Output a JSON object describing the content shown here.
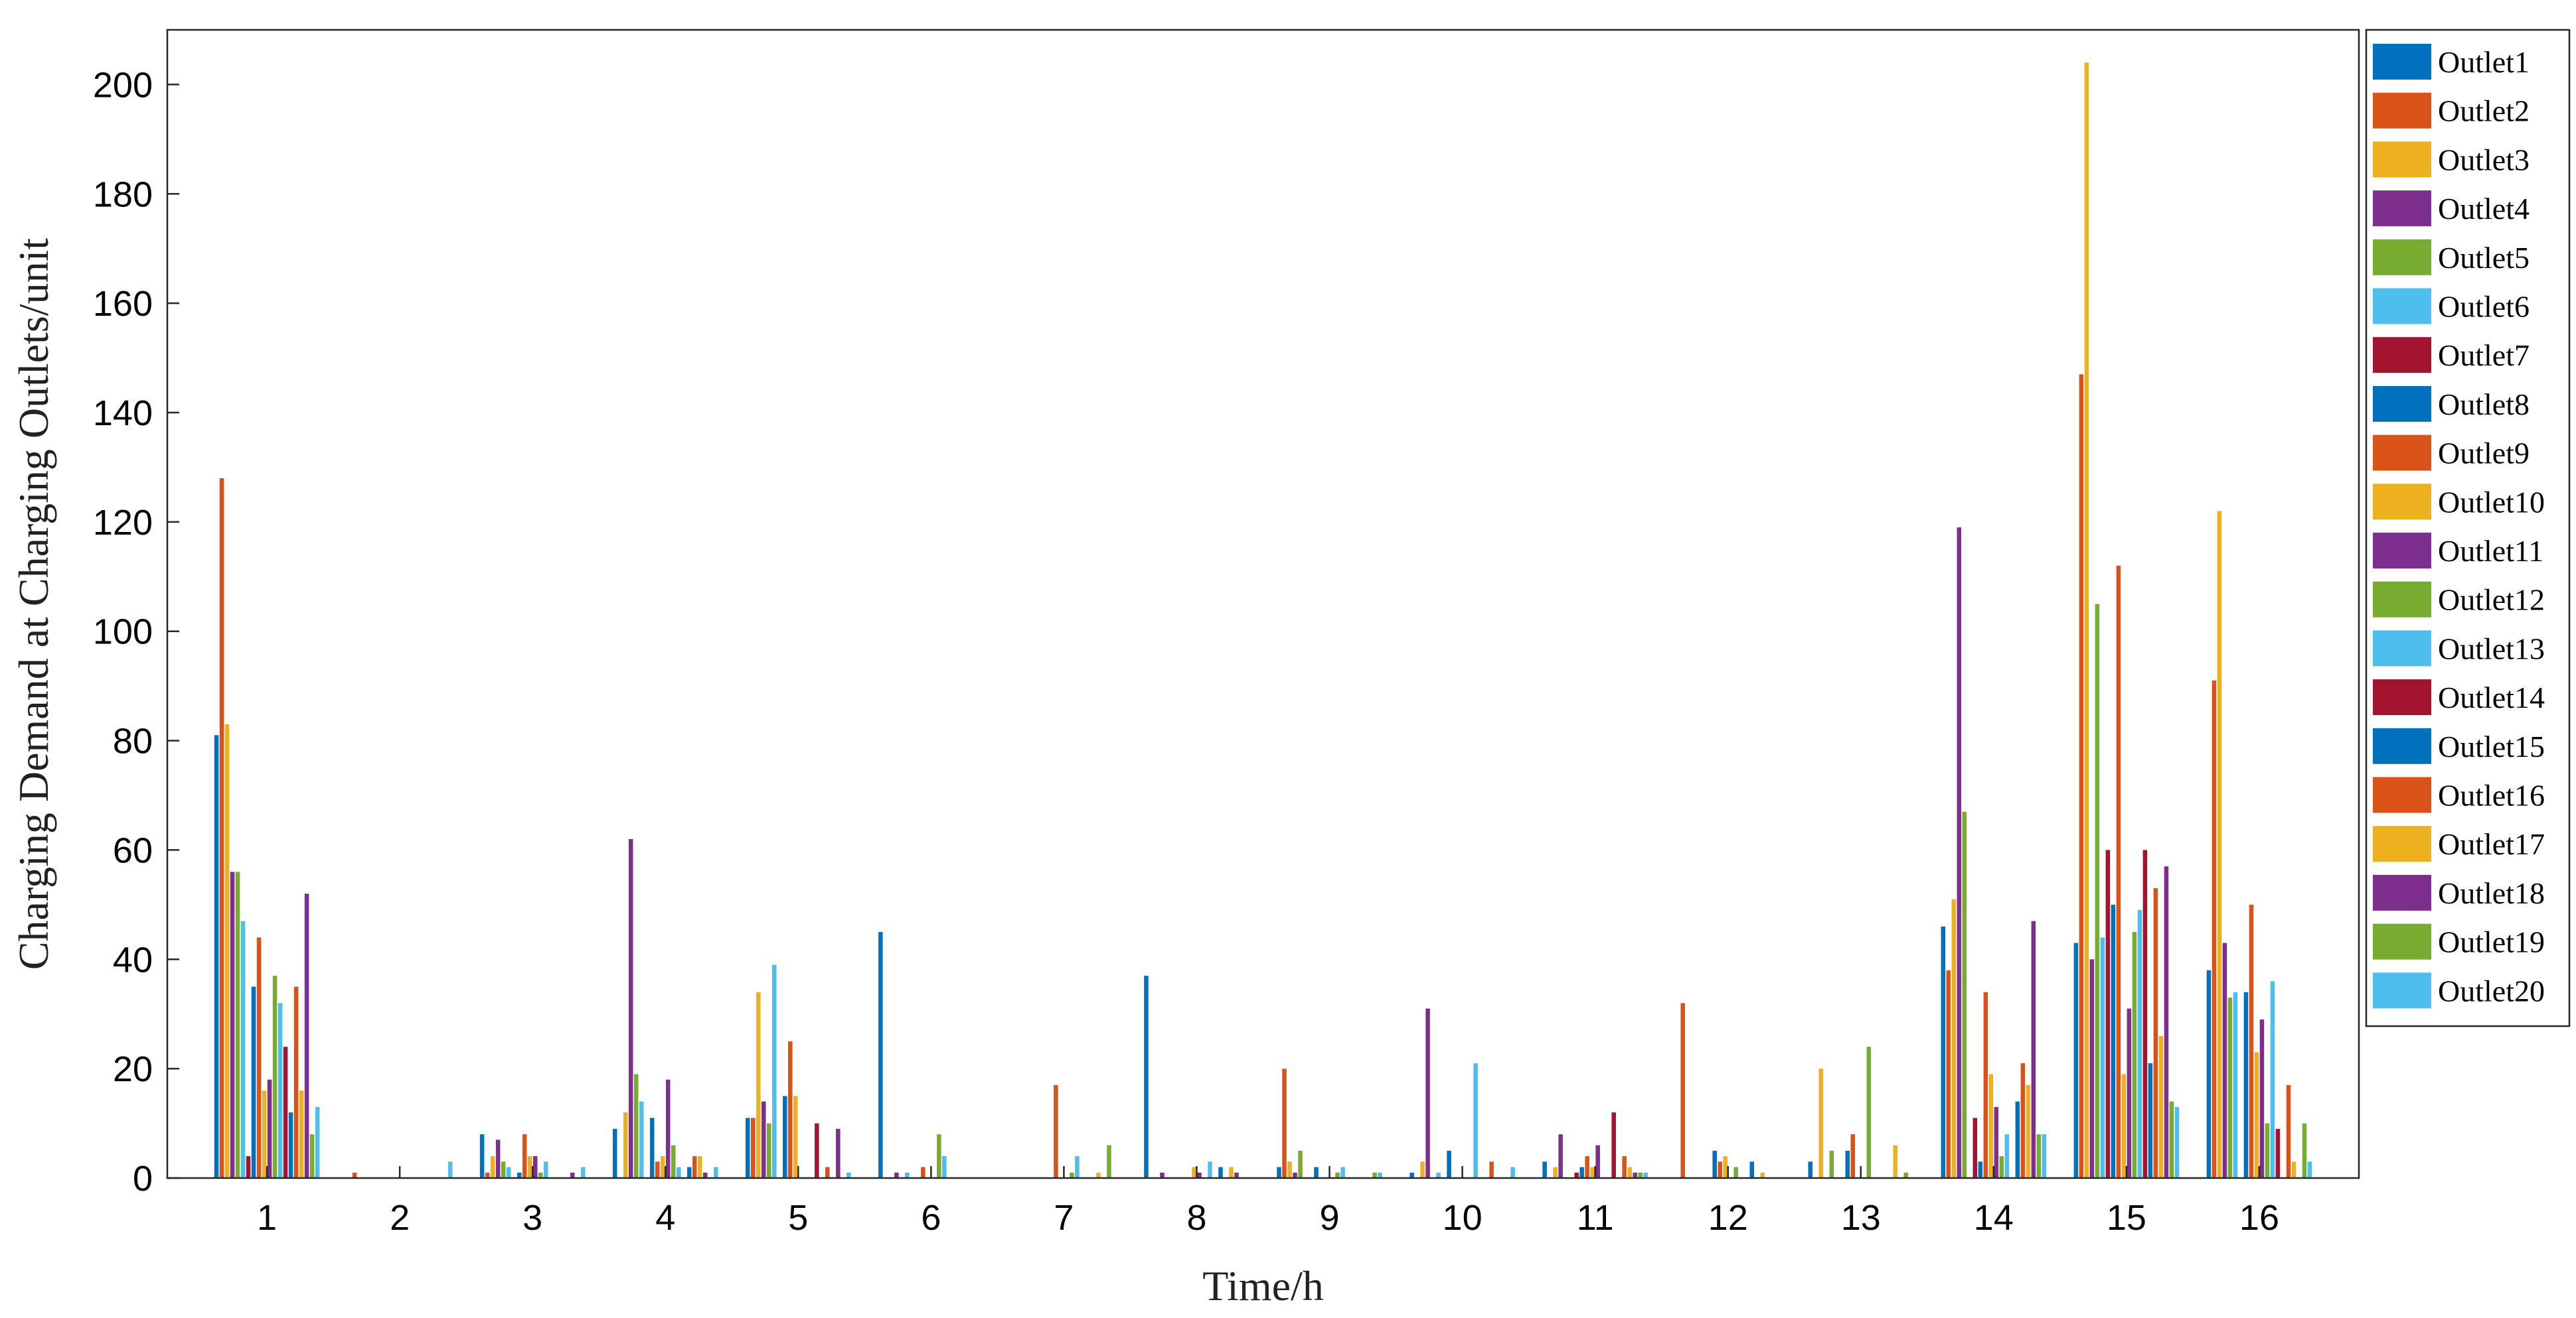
{
  "chart_data": {
    "type": "bar",
    "title": "",
    "xlabel": "Time/h",
    "ylabel": "Charging Demand at Charging Outlets/unit",
    "ylim": [
      0,
      210
    ],
    "yticks": [
      0,
      20,
      40,
      60,
      80,
      100,
      120,
      140,
      160,
      180,
      200
    ],
    "grid": false,
    "legend_position": "right",
    "categories": [
      "1",
      "2",
      "3",
      "4",
      "5",
      "6",
      "7",
      "8",
      "9",
      "10",
      "11",
      "12",
      "13",
      "14",
      "15",
      "16"
    ],
    "series": [
      {
        "name": "Outlet1",
        "color": "#0072BD",
        "values": [
          81,
          0,
          8,
          9,
          11,
          45,
          0,
          37,
          2,
          1,
          3,
          0,
          3,
          46,
          43,
          38
        ]
      },
      {
        "name": "Outlet2",
        "color": "#D95319",
        "values": [
          128,
          1,
          1,
          0,
          11,
          0,
          0,
          0,
          20,
          0,
          0,
          32,
          0,
          38,
          147,
          91
        ]
      },
      {
        "name": "Outlet3",
        "color": "#EDB120",
        "values": [
          83,
          0,
          4,
          12,
          34,
          0,
          0,
          0,
          3,
          3,
          2,
          0,
          20,
          51,
          204,
          122
        ]
      },
      {
        "name": "Outlet4",
        "color": "#7E2F8E",
        "values": [
          56,
          0,
          7,
          62,
          14,
          1,
          0,
          1,
          1,
          31,
          8,
          0,
          0,
          119,
          40,
          43
        ]
      },
      {
        "name": "Outlet5",
        "color": "#77AC30",
        "values": [
          56,
          0,
          3,
          19,
          10,
          0,
          0,
          0,
          5,
          0,
          0,
          0,
          5,
          67,
          105,
          33
        ]
      },
      {
        "name": "Outlet6",
        "color": "#4DBEEE",
        "values": [
          47,
          0,
          2,
          14,
          39,
          1,
          0,
          0,
          0,
          1,
          0,
          0,
          0,
          0,
          44,
          34
        ]
      },
      {
        "name": "Outlet7",
        "color": "#A2142F",
        "values": [
          4,
          0,
          0,
          0,
          0,
          0,
          0,
          0,
          0,
          0,
          1,
          0,
          0,
          11,
          60,
          0
        ]
      },
      {
        "name": "Outlet8",
        "color": "#0072BD",
        "values": [
          35,
          0,
          1,
          11,
          15,
          0,
          0,
          0,
          2,
          5,
          2,
          5,
          5,
          3,
          50,
          34
        ]
      },
      {
        "name": "Outlet9",
        "color": "#D95319",
        "values": [
          44,
          0,
          8,
          3,
          25,
          2,
          17,
          0,
          0,
          0,
          4,
          3,
          8,
          34,
          112,
          50
        ]
      },
      {
        "name": "Outlet10",
        "color": "#EDB120",
        "values": [
          16,
          0,
          4,
          4,
          15,
          0,
          0,
          2,
          0,
          0,
          2,
          4,
          0,
          19,
          19,
          23
        ]
      },
      {
        "name": "Outlet11",
        "color": "#7E2F8E",
        "values": [
          18,
          0,
          4,
          18,
          0,
          0,
          0,
          1,
          0,
          0,
          6,
          0,
          0,
          13,
          31,
          29
        ]
      },
      {
        "name": "Outlet12",
        "color": "#77AC30",
        "values": [
          37,
          0,
          1,
          6,
          0,
          8,
          1,
          0,
          1,
          0,
          0,
          2,
          24,
          4,
          45,
          10
        ]
      },
      {
        "name": "Outlet13",
        "color": "#4DBEEE",
        "values": [
          32,
          0,
          3,
          2,
          0,
          4,
          4,
          3,
          2,
          21,
          0,
          0,
          0,
          8,
          49,
          36
        ]
      },
      {
        "name": "Outlet14",
        "color": "#A2142F",
        "values": [
          24,
          0,
          0,
          0,
          10,
          0,
          0,
          0,
          0,
          0,
          12,
          0,
          0,
          0,
          60,
          9
        ]
      },
      {
        "name": "Outlet15",
        "color": "#0072BD",
        "values": [
          12,
          0,
          0,
          2,
          0,
          0,
          0,
          2,
          0,
          0,
          0,
          3,
          0,
          14,
          21,
          0
        ]
      },
      {
        "name": "Outlet16",
        "color": "#D95319",
        "values": [
          35,
          0,
          0,
          4,
          2,
          0,
          0,
          0,
          0,
          3,
          4,
          0,
          0,
          21,
          53,
          17
        ]
      },
      {
        "name": "Outlet17",
        "color": "#EDB120",
        "values": [
          16,
          0,
          0,
          4,
          0,
          0,
          1,
          2,
          0,
          0,
          2,
          1,
          6,
          17,
          26,
          3
        ]
      },
      {
        "name": "Outlet18",
        "color": "#7E2F8E",
        "values": [
          52,
          0,
          1,
          1,
          9,
          0,
          0,
          1,
          0,
          0,
          1,
          0,
          0,
          47,
          57,
          0
        ]
      },
      {
        "name": "Outlet19",
        "color": "#77AC30",
        "values": [
          8,
          0,
          0,
          0,
          0,
          0,
          6,
          0,
          1,
          0,
          1,
          0,
          1,
          8,
          14,
          10
        ]
      },
      {
        "name": "Outlet20",
        "color": "#4DBEEE",
        "values": [
          13,
          3,
          2,
          2,
          1,
          0,
          0,
          0,
          1,
          2,
          1,
          0,
          0,
          8,
          13,
          3
        ]
      }
    ]
  }
}
